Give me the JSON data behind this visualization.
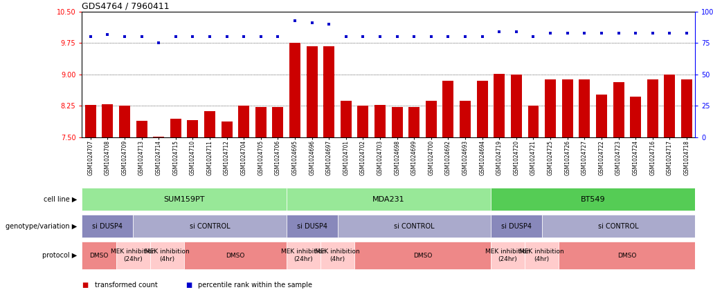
{
  "title": "GDS4764 / 7960411",
  "samples": [
    "GSM1024707",
    "GSM1024708",
    "GSM1024709",
    "GSM1024713",
    "GSM1024714",
    "GSM1024715",
    "GSM1024710",
    "GSM1024711",
    "GSM1024712",
    "GSM1024704",
    "GSM1024705",
    "GSM1024706",
    "GSM1024695",
    "GSM1024696",
    "GSM1024697",
    "GSM1024701",
    "GSM1024702",
    "GSM1024703",
    "GSM1024698",
    "GSM1024699",
    "GSM1024700",
    "GSM1024692",
    "GSM1024693",
    "GSM1024694",
    "GSM1024719",
    "GSM1024720",
    "GSM1024721",
    "GSM1024725",
    "GSM1024726",
    "GSM1024727",
    "GSM1024722",
    "GSM1024723",
    "GSM1024724",
    "GSM1024716",
    "GSM1024717",
    "GSM1024718"
  ],
  "bar_values": [
    8.28,
    8.29,
    8.25,
    7.9,
    7.52,
    7.95,
    7.92,
    8.12,
    7.88,
    8.25,
    8.22,
    8.22,
    9.75,
    9.68,
    9.68,
    8.38,
    8.25,
    8.28,
    8.22,
    8.22,
    8.38,
    8.85,
    8.38,
    8.85,
    9.02,
    9.0,
    8.25,
    8.88,
    8.88,
    8.88,
    8.52,
    8.82,
    8.48,
    8.88,
    9.0,
    8.88
  ],
  "percentile_values": [
    80,
    82,
    80,
    80,
    75,
    80,
    80,
    80,
    80,
    80,
    80,
    80,
    93,
    91,
    90,
    80,
    80,
    80,
    80,
    80,
    80,
    80,
    80,
    80,
    84,
    84,
    80,
    83,
    83,
    83,
    83,
    83,
    83,
    83,
    83,
    83
  ],
  "ylim_left": [
    7.5,
    10.5
  ],
  "ylim_right": [
    0,
    100
  ],
  "yticks_left": [
    7.5,
    8.25,
    9.0,
    9.75,
    10.5
  ],
  "yticks_right": [
    0,
    25,
    50,
    75,
    100
  ],
  "bar_color": "#CC0000",
  "dot_color": "#0000CC",
  "cell_lines": [
    {
      "label": "SUM159PT",
      "start": 0,
      "end": 11,
      "color": "#98E898"
    },
    {
      "label": "MDA231",
      "start": 12,
      "end": 23,
      "color": "#98E898"
    },
    {
      "label": "BT549",
      "start": 24,
      "end": 35,
      "color": "#55CC55"
    }
  ],
  "genotype_variations": [
    {
      "label": "si DUSP4",
      "start": 0,
      "end": 2,
      "color": "#8888BB"
    },
    {
      "label": "si CONTROL",
      "start": 3,
      "end": 11,
      "color": "#AAAACC"
    },
    {
      "label": "si DUSP4",
      "start": 12,
      "end": 14,
      "color": "#8888BB"
    },
    {
      "label": "si CONTROL",
      "start": 15,
      "end": 23,
      "color": "#AAAACC"
    },
    {
      "label": "si DUSP4",
      "start": 24,
      "end": 26,
      "color": "#8888BB"
    },
    {
      "label": "si CONTROL",
      "start": 27,
      "end": 35,
      "color": "#AAAACC"
    }
  ],
  "protocols": [
    {
      "label": "DMSO",
      "start": 0,
      "end": 1,
      "color": "#EE8888"
    },
    {
      "label": "MEK inhibition\n(24hr)",
      "start": 2,
      "end": 3,
      "color": "#FFCCCC"
    },
    {
      "label": "MEK inhibition\n(4hr)",
      "start": 4,
      "end": 5,
      "color": "#FFCCCC"
    },
    {
      "label": "DMSO",
      "start": 6,
      "end": 11,
      "color": "#EE8888"
    },
    {
      "label": "MEK inhibition\n(24hr)",
      "start": 12,
      "end": 13,
      "color": "#FFCCCC"
    },
    {
      "label": "MEK inhibition\n(4hr)",
      "start": 14,
      "end": 15,
      "color": "#FFCCCC"
    },
    {
      "label": "DMSO",
      "start": 16,
      "end": 23,
      "color": "#EE8888"
    },
    {
      "label": "MEK inhibition\n(24hr)",
      "start": 24,
      "end": 25,
      "color": "#FFCCCC"
    },
    {
      "label": "MEK inhibition\n(4hr)",
      "start": 26,
      "end": 27,
      "color": "#FFCCCC"
    },
    {
      "label": "DMSO",
      "start": 28,
      "end": 35,
      "color": "#EE8888"
    }
  ],
  "row_labels": [
    "cell line",
    "genotype/variation",
    "protocol"
  ],
  "legend_items": [
    {
      "label": "transformed count",
      "color": "#CC0000"
    },
    {
      "label": "percentile rank within the sample",
      "color": "#0000CC"
    }
  ]
}
